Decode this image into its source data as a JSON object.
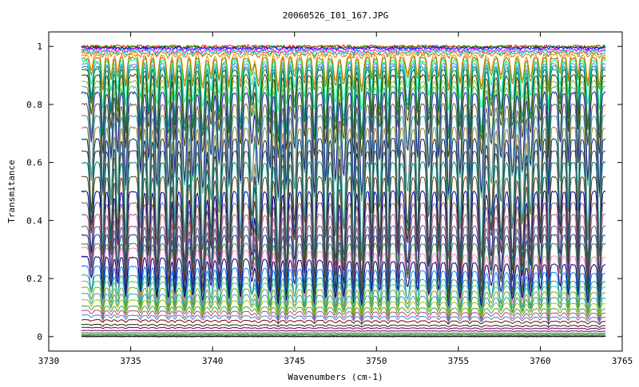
{
  "chart_data": {
    "type": "line",
    "title": "20060526_I01_167.JPG",
    "xlabel": "Wavenumbers (cm-1)",
    "ylabel": "Transmitance",
    "xlim": [
      3730,
      3765
    ],
    "ylim": [
      -0.05,
      1.05
    ],
    "xticks": [
      3730,
      3735,
      3740,
      3745,
      3750,
      3755,
      3760,
      3765
    ],
    "xtick_labels": [
      "3730",
      "3735",
      "3740",
      "3745",
      "3750",
      "3755",
      "3760",
      "3765"
    ],
    "yticks": [
      0,
      0.2,
      0.4,
      0.6,
      0.8,
      1
    ],
    "ytick_labels": [
      "0",
      "0.2",
      "0.4",
      "0.6",
      "0.8",
      "1"
    ],
    "grid": false,
    "legend": "none",
    "x_range_of_data": [
      3732,
      3764
    ],
    "absorption_line_centers": [
      3732.6,
      3733.3,
      3733.8,
      3734.2,
      3734.7,
      3735.6,
      3736.1,
      3736.6,
      3737.3,
      3737.7,
      3738.3,
      3738.8,
      3739.4,
      3739.9,
      3740.4,
      3741.0,
      3741.7,
      3742.4,
      3742.8,
      3743.5,
      3744.0,
      3744.5,
      3745.0,
      3745.6,
      3746.2,
      3746.9,
      3747.5,
      3748.0,
      3748.6,
      3749.1,
      3749.7,
      3750.2,
      3750.7,
      3751.3,
      3751.9,
      3752.5,
      3753.2,
      3753.8,
      3754.4,
      3755.1,
      3755.7,
      3756.4,
      3757.0,
      3757.6,
      3758.3,
      3758.9,
      3759.4,
      3760.0,
      3760.5,
      3761.2,
      3761.7,
      3762.3,
      3762.9,
      3763.6
    ],
    "series_count": 48,
    "series_baselines": [
      1.0,
      0.998,
      0.995,
      0.99,
      0.985,
      0.978,
      0.97,
      0.96,
      0.95,
      0.94,
      0.93,
      0.92,
      0.9,
      0.88,
      0.86,
      0.84,
      0.8,
      0.76,
      0.72,
      0.68,
      0.64,
      0.6,
      0.55,
      0.5,
      0.46,
      0.42,
      0.38,
      0.35,
      0.32,
      0.29,
      0.26,
      0.23,
      0.2,
      0.18,
      0.16,
      0.14,
      0.12,
      0.1,
      0.085,
      0.07,
      0.055,
      0.04,
      0.03,
      0.02,
      0.012,
      0.006,
      0.002,
      0.0
    ],
    "colors": [
      "#ff0000",
      "#00a000",
      "#0000ff",
      "#ff00ff",
      "#00c0c0",
      "#c08000",
      "#ff8000",
      "#808000",
      "#00ff80",
      "#8080ff",
      "#00a0a0",
      "#008040",
      "#404000",
      "#80c040",
      "#40c080",
      "#2020a0",
      "#606040",
      "#40a0a0",
      "#a08040",
      "#003080",
      "#404040",
      "#008080",
      "#604020",
      "#0000a0",
      "#806060",
      "#a06080",
      "#606080",
      "#204080",
      "#408040",
      "#ff80c0",
      "#000080",
      "#0080ff",
      "#40a060",
      "#40c0a0",
      "#80a020",
      "#20a0c0",
      "#a0c000",
      "#40a040",
      "#c04080",
      "#4080c0",
      "#800000",
      "#202020",
      "#600060",
      "#800040",
      "#404080",
      "#008000",
      "#406040",
      "#000000"
    ]
  }
}
